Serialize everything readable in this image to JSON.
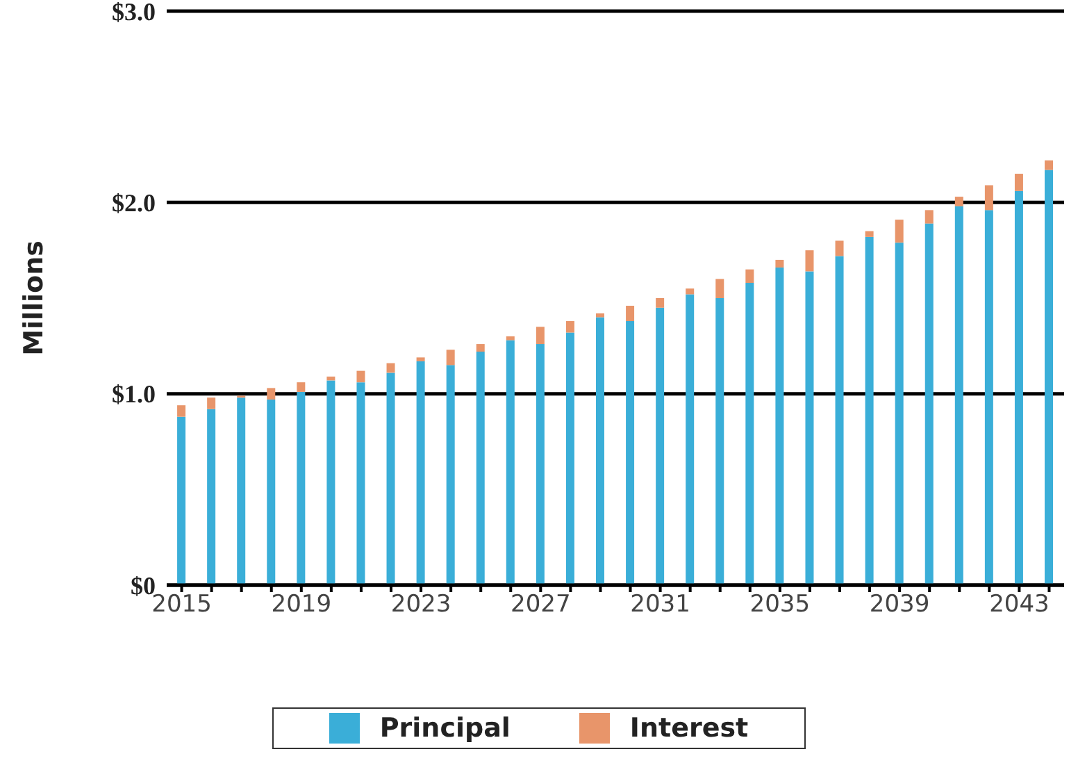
{
  "chart_data": {
    "type": "bar",
    "ylabel": "Millions",
    "stacked": true,
    "categories": [
      "2015",
      null,
      null,
      null,
      "2019",
      null,
      null,
      null,
      "2023",
      null,
      null,
      null,
      "2027",
      null,
      null,
      null,
      "2031",
      null,
      null,
      null,
      "2035",
      null,
      null,
      null,
      "2039",
      null,
      null,
      null,
      "2043",
      null
    ],
    "series": [
      {
        "name": "Principal",
        "color": "#3aaed8",
        "values": [
          0.88,
          0.92,
          0.98,
          0.97,
          1.01,
          1.07,
          1.06,
          1.11,
          1.17,
          1.15,
          1.22,
          1.28,
          1.26,
          1.32,
          1.4,
          1.38,
          1.45,
          1.52,
          1.5,
          1.58,
          1.66,
          1.64,
          1.72,
          1.82,
          1.79,
          1.89,
          1.98,
          1.96,
          2.06,
          2.17
        ]
      },
      {
        "name": "Interest",
        "color": "#e8956a",
        "values": [
          0.06,
          0.06,
          0.01,
          0.06,
          0.05,
          0.02,
          0.06,
          0.05,
          0.02,
          0.08,
          0.04,
          0.02,
          0.09,
          0.06,
          0.02,
          0.08,
          0.05,
          0.03,
          0.1,
          0.07,
          0.04,
          0.11,
          0.08,
          0.03,
          0.12,
          0.07,
          0.05,
          0.13,
          0.09,
          0.05
        ]
      }
    ],
    "ylim": [
      0,
      3
    ],
    "yticks": [
      {
        "value": 0,
        "label": "$0"
      },
      {
        "value": 1,
        "label": "$1.0"
      },
      {
        "value": 2,
        "label": "$2.0"
      },
      {
        "value": 3,
        "label": "$3.0"
      }
    ],
    "grid": "y",
    "legend": "bottom"
  }
}
